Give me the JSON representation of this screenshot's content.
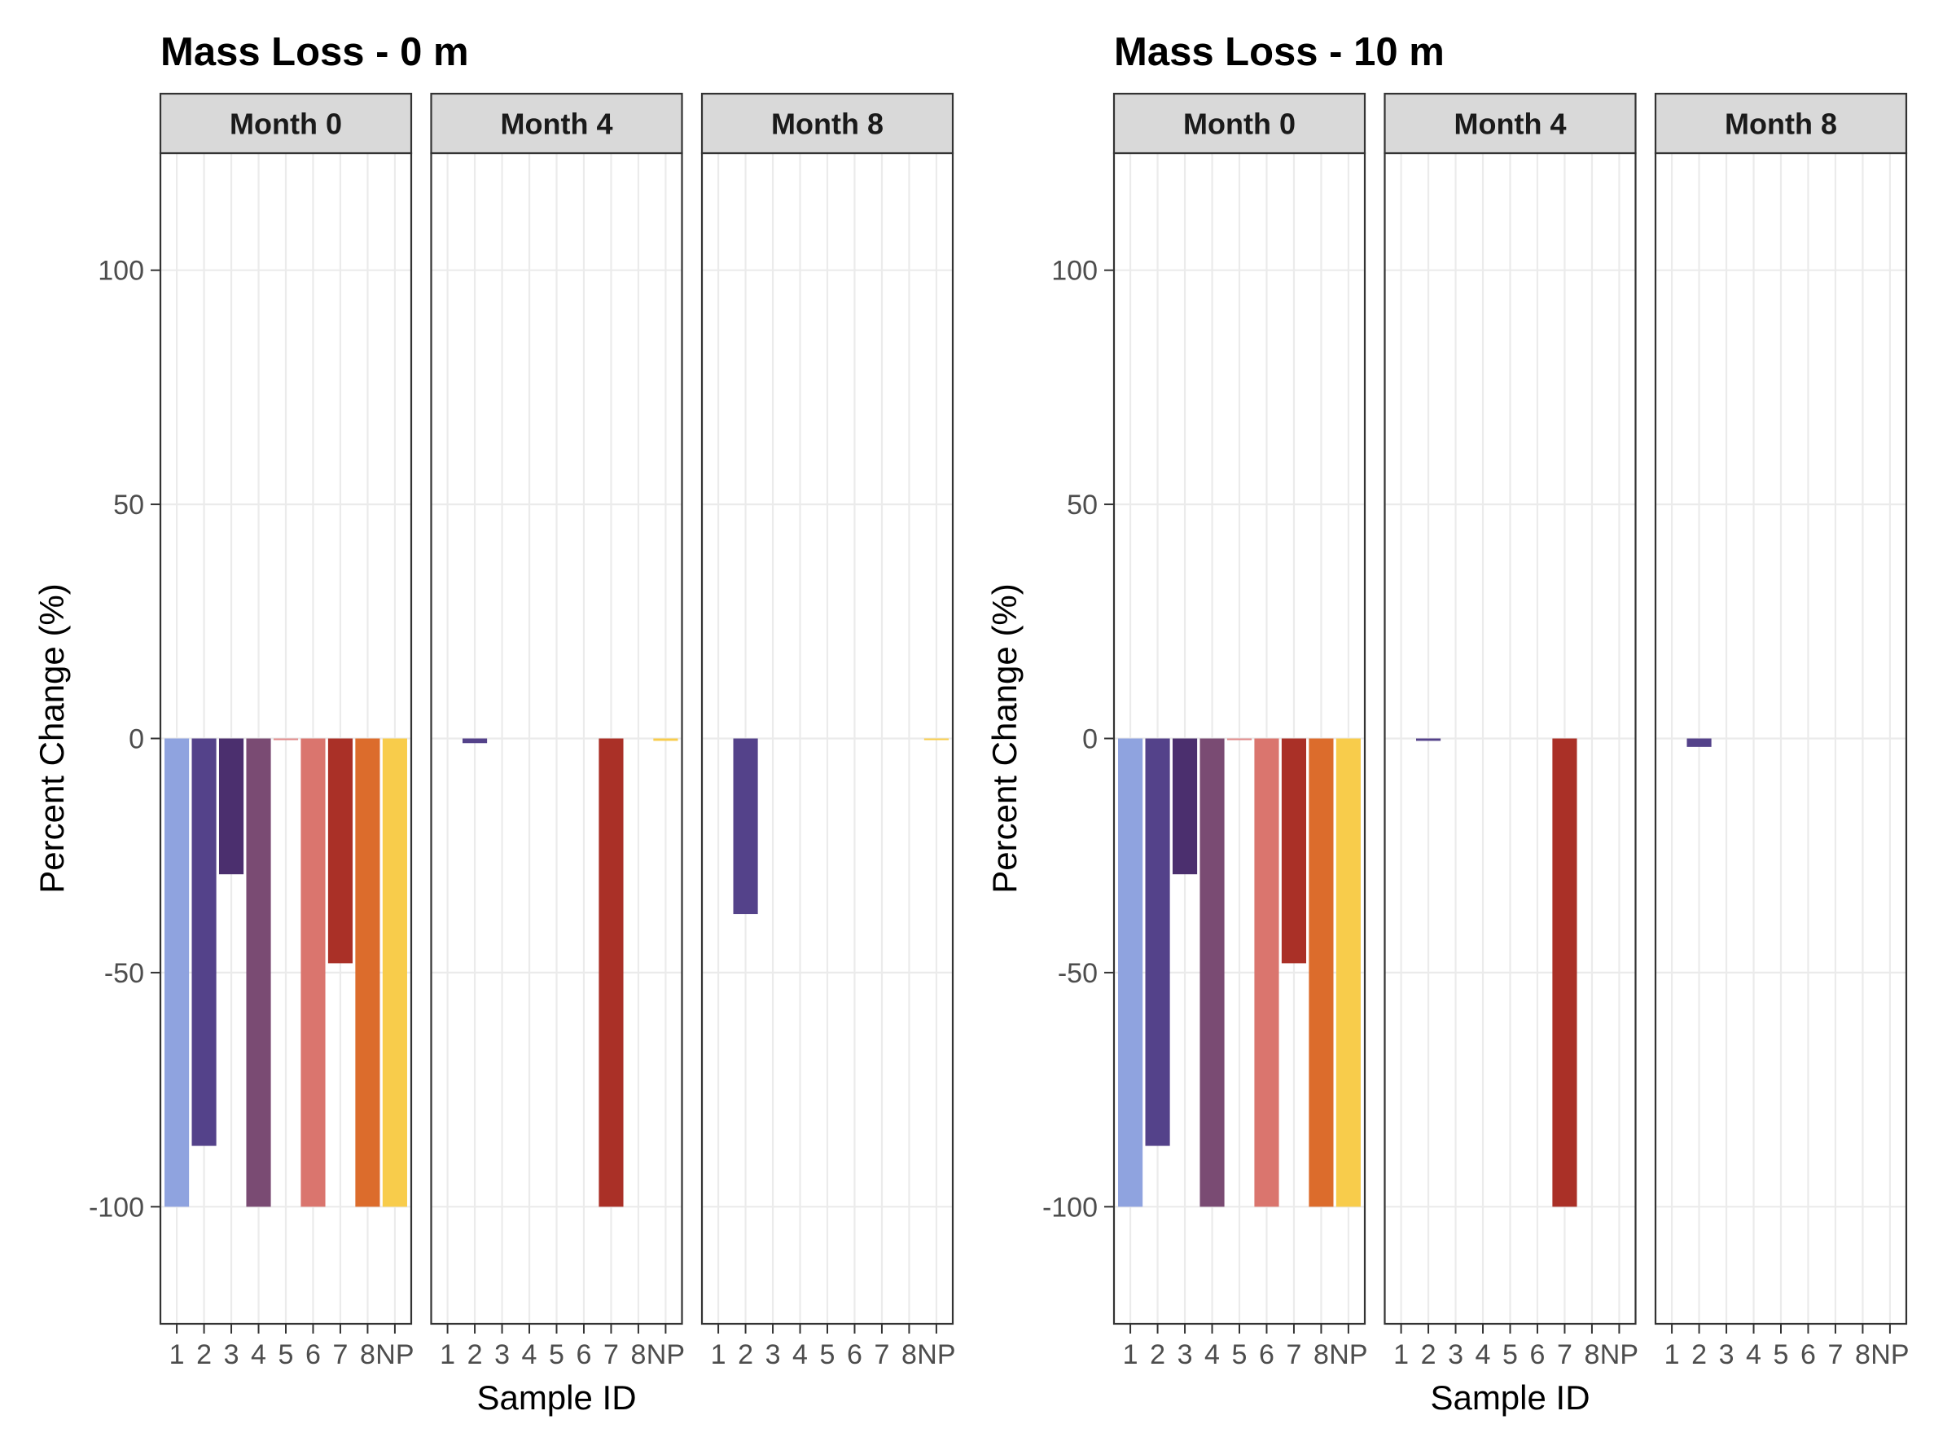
{
  "chart_data": [
    {
      "type": "bar",
      "title": "Mass Loss - 0 m",
      "xlabel": "Sample ID",
      "ylabel": "Percent Change (%)",
      "ylim": [
        -125,
        125
      ],
      "yticks": [
        -100,
        -50,
        0,
        50,
        100
      ],
      "grid": true,
      "legend": "none",
      "categories": [
        "1",
        "2",
        "3",
        "4",
        "5",
        "6",
        "7",
        "8",
        "NP"
      ],
      "category_colors": [
        "#8FA3DF",
        "#54428A",
        "#4B2F6E",
        "#7A4B73",
        "#E08A8A",
        "#DA756E",
        "#AA3027",
        "#DC6C2C",
        "#F8CC4B"
      ],
      "facets": [
        {
          "name": "Month 0",
          "values": [
            -100,
            -87,
            -29,
            -100,
            -0.2,
            -100,
            -48,
            -100,
            -100
          ]
        },
        {
          "name": "Month 4",
          "values": [
            0,
            -1,
            0,
            0,
            0,
            0,
            -100,
            0,
            -0.5
          ]
        },
        {
          "name": "Month 8",
          "values": [
            0,
            -37.5,
            0,
            0,
            0,
            0,
            0,
            0,
            -0.3
          ]
        }
      ]
    },
    {
      "type": "bar",
      "title": "Mass Loss - 10 m",
      "xlabel": "Sample ID",
      "ylabel": "Percent Change (%)",
      "ylim": [
        -125,
        125
      ],
      "yticks": [
        -100,
        -50,
        0,
        50,
        100
      ],
      "grid": true,
      "legend": "none",
      "categories": [
        "1",
        "2",
        "3",
        "4",
        "5",
        "6",
        "7",
        "8",
        "NP"
      ],
      "category_colors": [
        "#8FA3DF",
        "#54428A",
        "#4B2F6E",
        "#7A4B73",
        "#E08A8A",
        "#DA756E",
        "#AA3027",
        "#DC6C2C",
        "#F8CC4B"
      ],
      "facets": [
        {
          "name": "Month 0",
          "values": [
            -100,
            -87,
            -29,
            -100,
            -0.2,
            -100,
            -48,
            -100,
            -100
          ]
        },
        {
          "name": "Month 4",
          "values": [
            0,
            -0.5,
            0,
            0,
            0,
            0,
            -100,
            0,
            0
          ]
        },
        {
          "name": "Month 8",
          "values": [
            0,
            -1.8,
            0,
            0,
            0,
            0,
            0,
            0,
            0
          ]
        }
      ]
    }
  ]
}
